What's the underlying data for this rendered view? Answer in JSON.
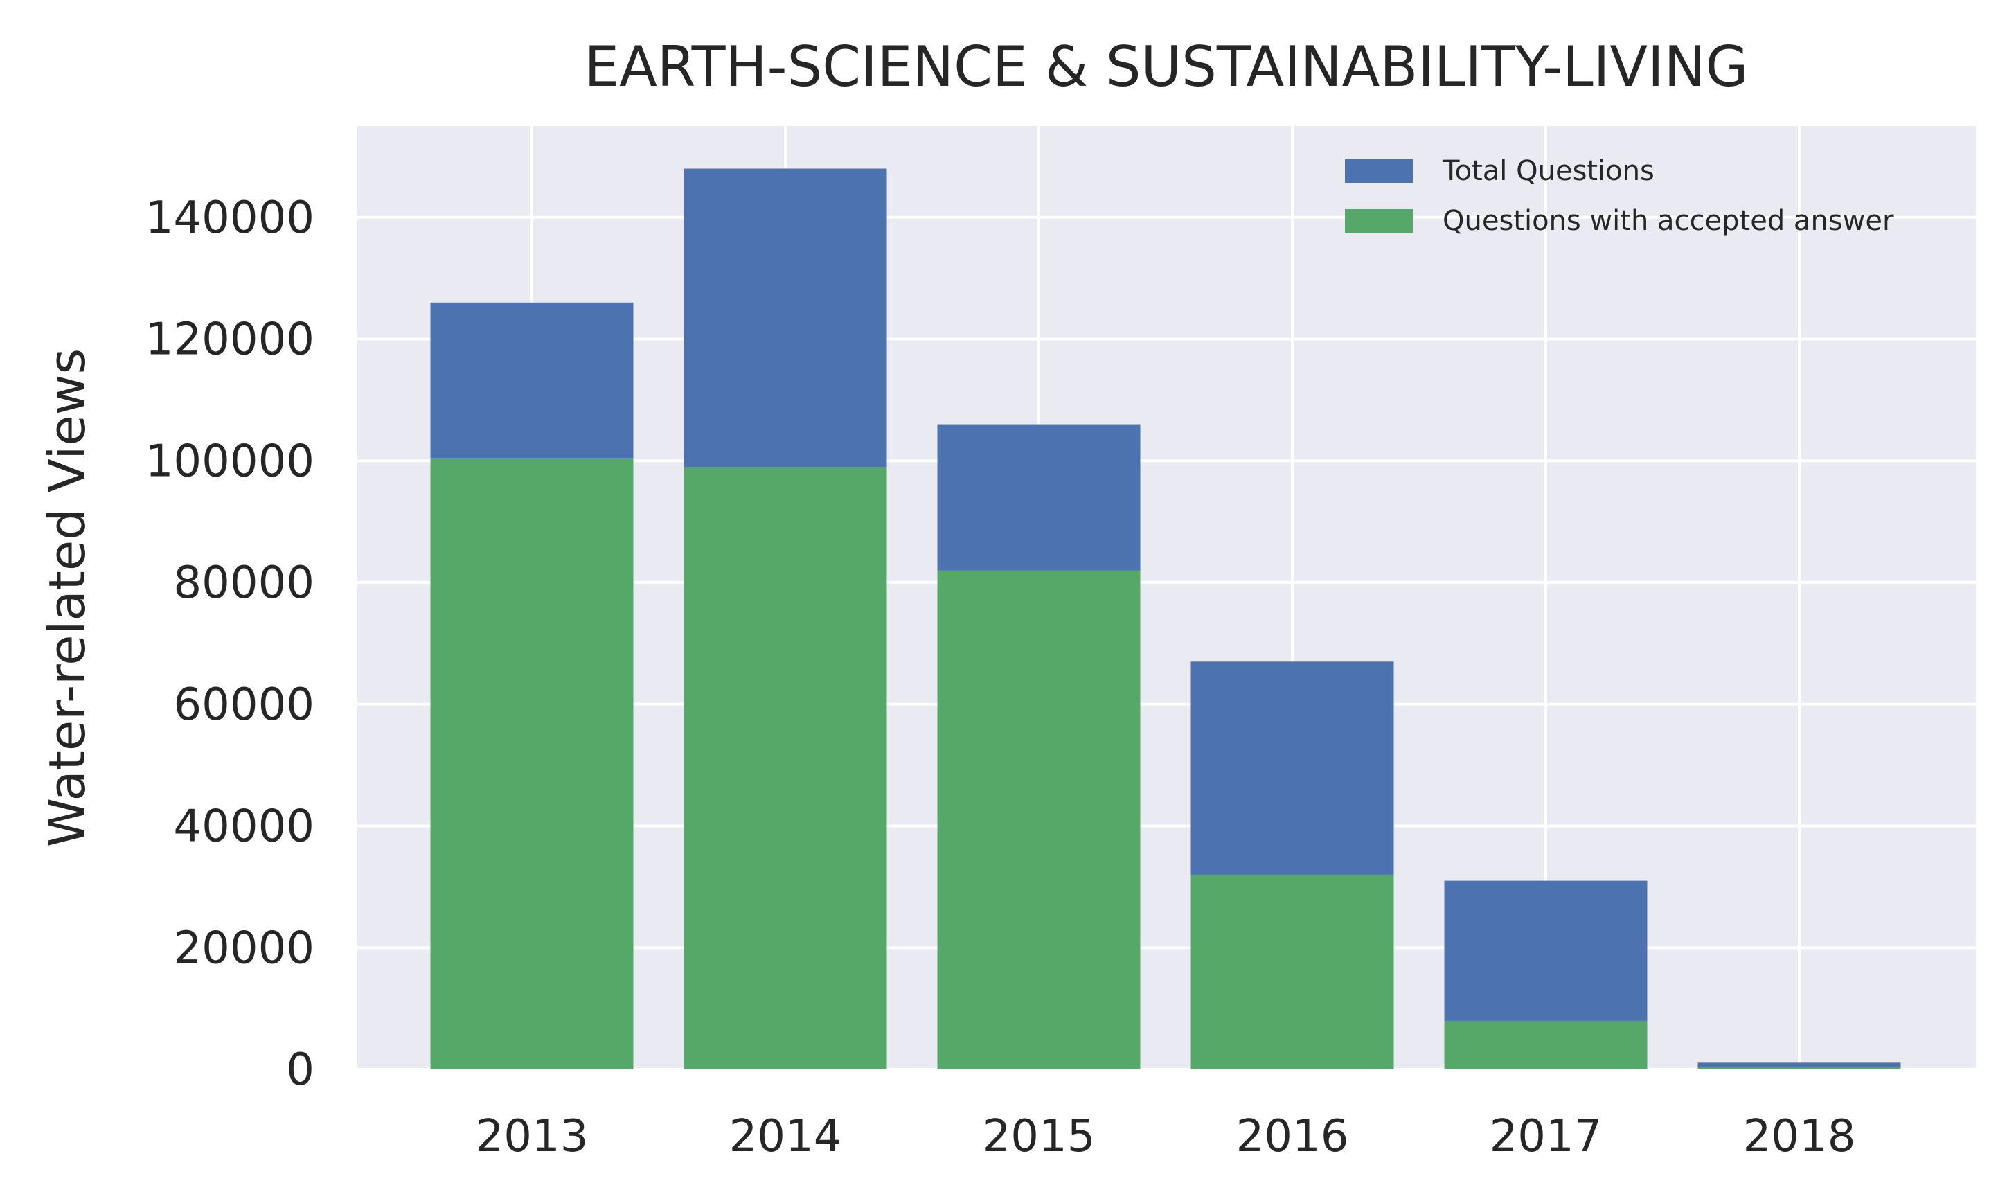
{
  "chart_data": {
    "type": "bar",
    "stacked": false,
    "overlay": true,
    "title": "EARTH-SCIENCE & SUSTAINABILITY-LIVING",
    "xlabel": "",
    "ylabel": "Water-related Views",
    "categories": [
      "2013",
      "2014",
      "2015",
      "2016",
      "2017",
      "2018"
    ],
    "series": [
      {
        "name": "Total Questions",
        "color": "#4c72b0",
        "values": [
          126000,
          148000,
          106000,
          67000,
          31000,
          1100
        ]
      },
      {
        "name": "Questions with accepted answer",
        "color": "#55a868",
        "values": [
          100500,
          99000,
          82000,
          32000,
          8000,
          400
        ]
      }
    ],
    "ylim": [
      0,
      155000
    ],
    "yticks": [
      0,
      20000,
      40000,
      60000,
      80000,
      100000,
      120000,
      140000
    ],
    "ytick_labels": [
      "0",
      "20000",
      "40000",
      "60000",
      "80000",
      "100000",
      "120000",
      "140000"
    ],
    "grid": true,
    "legend_position": "top-right",
    "background": "#eaeaf2"
  }
}
